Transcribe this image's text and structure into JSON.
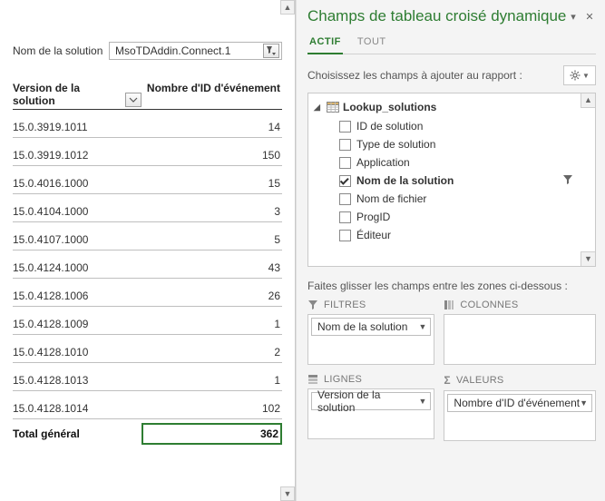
{
  "pivot": {
    "filter_label": "Nom de la solution",
    "filter_value": "MsoTDAddin.Connect.1",
    "col_a_header": "Version de la solution",
    "col_b_header": "Nombre d'ID d'événement",
    "rows": [
      {
        "version": "15.0.3919.1011",
        "count": "14"
      },
      {
        "version": "15.0.3919.1012",
        "count": "150"
      },
      {
        "version": "15.0.4016.1000",
        "count": "15"
      },
      {
        "version": "15.0.4104.1000",
        "count": "3"
      },
      {
        "version": "15.0.4107.1000",
        "count": "5"
      },
      {
        "version": "15.0.4124.1000",
        "count": "43"
      },
      {
        "version": "15.0.4128.1006",
        "count": "26"
      },
      {
        "version": "15.0.4128.1009",
        "count": "1"
      },
      {
        "version": "15.0.4128.1010",
        "count": "2"
      },
      {
        "version": "15.0.4128.1013",
        "count": "1"
      },
      {
        "version": "15.0.4128.1014",
        "count": "102"
      }
    ],
    "total_label": "Total général",
    "total_value": "362"
  },
  "pane": {
    "title": "Champs de tableau croisé dynamique",
    "tab_active": "ACTIF",
    "tab_all": "TOUT",
    "choose_text": "Choisissez les champs à ajouter au rapport :",
    "drag_hint": "Faites glisser les champs entre les zones ci-dessous :",
    "table_name": "Lookup_solutions",
    "fields": [
      {
        "label": "ID de solution",
        "checked": false,
        "selected": false,
        "filtered": false
      },
      {
        "label": "Type de solution",
        "checked": false,
        "selected": false,
        "filtered": false
      },
      {
        "label": "Application",
        "checked": false,
        "selected": false,
        "filtered": false
      },
      {
        "label": "Nom de la solution",
        "checked": true,
        "selected": true,
        "filtered": true
      },
      {
        "label": "Nom de fichier",
        "checked": false,
        "selected": false,
        "filtered": false
      },
      {
        "label": "ProgID",
        "checked": false,
        "selected": false,
        "filtered": false
      },
      {
        "label": "Éditeur",
        "checked": false,
        "selected": false,
        "filtered": false
      }
    ],
    "areas": {
      "filters_label": "FILTRES",
      "columns_label": "COLONNES",
      "rows_label": "LIGNES",
      "values_label": "VALEURS",
      "filters_chip": "Nom de la solution",
      "rows_chip": "Version de la solution",
      "values_chip": "Nombre d'ID d'événement"
    }
  },
  "colors": {
    "accent_green": "#2e7d32",
    "border_gray": "#c9c9c9",
    "text_gray": "#555"
  }
}
